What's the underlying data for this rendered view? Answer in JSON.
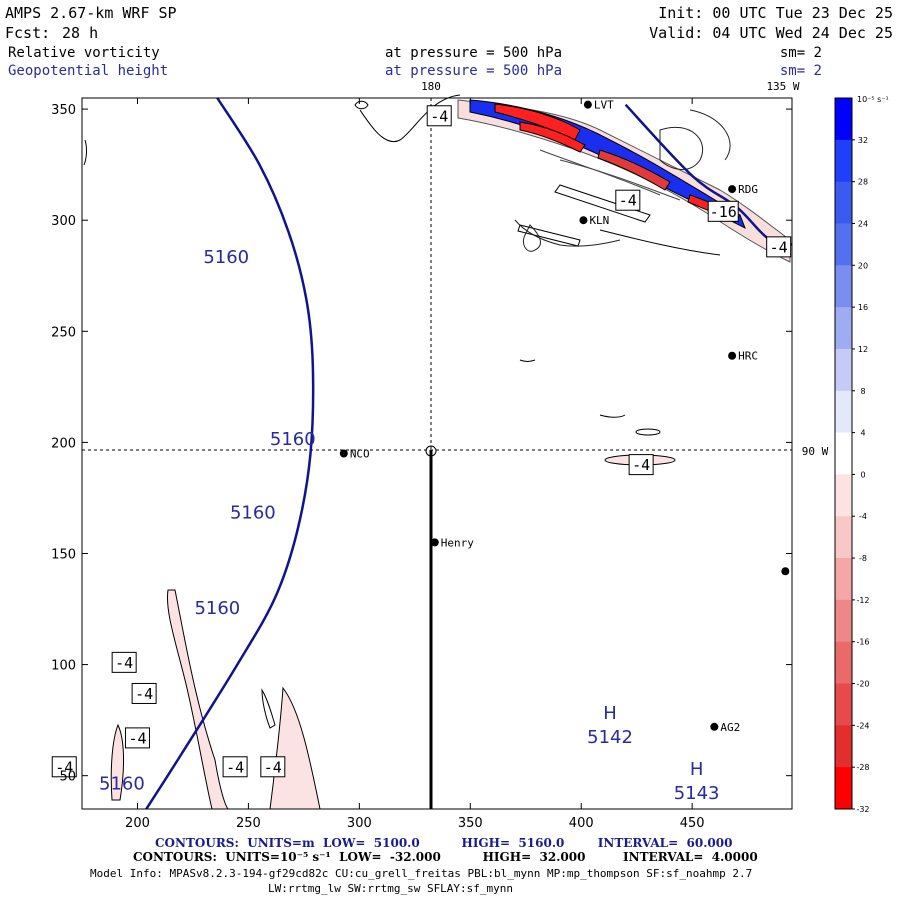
{
  "header": {
    "model_line": "AMPS 2.67-km WRF SP",
    "init_line": "Init: 00 UTC Tue 23 Dec 25",
    "fcst_label": "Fcst:",
    "fcst_value": "28 h",
    "valid_line": "Valid: 04 UTC Wed 24 Dec 25",
    "field1": {
      "name": "Relative vorticity",
      "level": "at pressure =  500 hPa",
      "smooth": "sm= 2"
    },
    "field2": {
      "name": "Geopotential height",
      "level": "at pressure =  500 hPa",
      "smooth": "sm= 2"
    }
  },
  "map_labels": {
    "lon_180": "180",
    "lon_135w": "135 W",
    "lon_90w": "90 W"
  },
  "stations": [
    {
      "name": "LVT",
      "x": 403,
      "y": 352
    },
    {
      "name": "RDG",
      "x": 468,
      "y": 314
    },
    {
      "name": "KLN",
      "x": 401,
      "y": 300
    },
    {
      "name": "HRC",
      "x": 468,
      "y": 239
    },
    {
      "name": "NCO",
      "x": 293,
      "y": 195
    },
    {
      "name": "Henry",
      "x": 334,
      "y": 155
    },
    {
      "name": "AG2",
      "x": 460,
      "y": 72
    },
    {
      "name": "",
      "x": 492,
      "y": 142
    }
  ],
  "chart_data": {
    "type": "contour",
    "x_ticks": [
      200,
      250,
      300,
      350,
      400,
      450
    ],
    "y_ticks": [
      50,
      100,
      150,
      200,
      250,
      300,
      350
    ],
    "xlim": [
      175,
      495
    ],
    "ylim": [
      35,
      355
    ],
    "height_contours": [
      {
        "value": 5160,
        "points": [
          [
            236,
            355
          ],
          [
            255,
            325
          ],
          [
            268,
            295
          ],
          [
            276,
            265
          ],
          [
            279,
            235
          ],
          [
            278,
            195
          ],
          [
            272,
            160
          ],
          [
            262,
            130
          ],
          [
            245,
            100
          ],
          [
            220,
            60
          ],
          [
            204,
            35
          ]
        ]
      },
      {
        "value": 5160,
        "points": [
          [
            420,
            352
          ],
          [
            450,
            320
          ],
          [
            470,
            306
          ],
          [
            484,
            292
          ],
          [
            495,
            289
          ]
        ]
      }
    ],
    "height_labels": [
      {
        "text": "5160",
        "x": 240,
        "y": 283
      },
      {
        "text": "5160",
        "x": 270,
        "y": 201
      },
      {
        "text": "5160",
        "x": 252,
        "y": 168
      },
      {
        "text": "5160",
        "x": 236,
        "y": 125
      },
      {
        "text": "5160",
        "x": 193,
        "y": 46
      }
    ],
    "highs": [
      {
        "letter": "H",
        "value": "5142",
        "x": 413,
        "y": 70
      },
      {
        "letter": "H",
        "value": "5143",
        "x": 452,
        "y": 45
      }
    ],
    "vort_boxes": [
      {
        "text": "-4",
        "x": 336,
        "y": 347
      },
      {
        "text": "-4",
        "x": 421,
        "y": 309
      },
      {
        "text": "-16",
        "x": 464,
        "y": 304
      },
      {
        "text": "-4",
        "x": 489,
        "y": 288
      },
      {
        "text": "-4",
        "x": 427,
        "y": 190
      },
      {
        "text": "-4",
        "x": 194,
        "y": 101
      },
      {
        "text": "-4",
        "x": 203,
        "y": 87
      },
      {
        "text": "-4",
        "x": 200,
        "y": 67
      },
      {
        "text": "-4",
        "x": 167,
        "y": 54
      },
      {
        "text": "-4",
        "x": 244,
        "y": 54
      },
      {
        "text": "-4",
        "x": 261,
        "y": 54
      }
    ],
    "colorbar": {
      "unit_label": "10⁻⁵ s⁻¹",
      "levels": [
        36,
        32,
        28,
        24,
        20,
        16,
        12,
        8,
        4,
        0,
        -4,
        -8,
        -12,
        -16,
        -20,
        -24,
        -28,
        -32,
        -36
      ],
      "tick_labels": [
        "32",
        "28",
        "24",
        "20",
        "16",
        "12",
        "8",
        "4",
        "0",
        "-4",
        "-8",
        "-12",
        "-16",
        "-20",
        "-24",
        "-28",
        "-32"
      ],
      "colors": [
        "#0000ff",
        "#1f3ff8",
        "#3a5af0",
        "#5570ee",
        "#7a8ef0",
        "#9eacf2",
        "#c3cbf6",
        "#e4e8fb",
        "#ffffff",
        "#fce3e3",
        "#f8c7c7",
        "#f3a7a7",
        "#ee8888",
        "#ea6a6a",
        "#e64a4a",
        "#e32e2e",
        "#ff0000"
      ]
    }
  },
  "footer": {
    "contours1": "CONTOURS:  UNITS=m  LOW=  5100.0          HIGH=  5160.0        INTERVAL=  60.000",
    "contours2": "CONTOURS:  UNITS=10⁻⁵ s⁻¹  LOW=  -32.000          HIGH=  32.000         INTERVAL=  4.0000",
    "model_info1": "Model Info: MPASv8.2.3-194-gf29cd82c CU:cu_grell_freitas PBL:bl_mynn MP:mp_thompson SF:sf_noahmp 2.7",
    "model_info2": "LW:rrtmg_lw SW:rrtmg_sw SFLAY:sf_mynn"
  }
}
